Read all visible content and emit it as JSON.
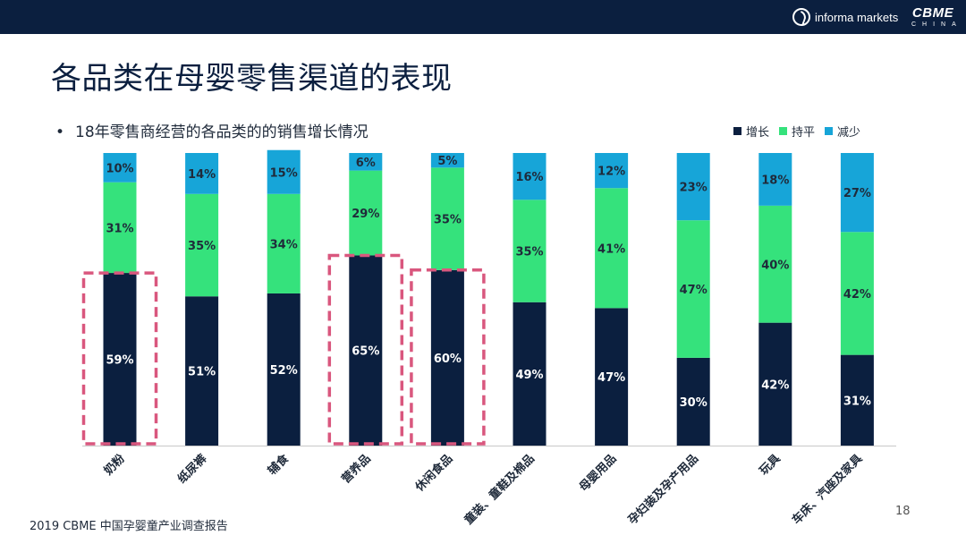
{
  "header": {
    "informa_text": "informa markets",
    "cbme_big": "CBME",
    "cbme_small": "CHINA"
  },
  "title": "各品类在母婴零售渠道的表现",
  "bullet": "18年零售商经营的各品类的的销售增长情况",
  "legend": [
    {
      "name": "增长",
      "color": "#0b1f3f"
    },
    {
      "name": "持平",
      "color": "#35e27c"
    },
    {
      "name": "减少",
      "color": "#17a5d8"
    }
  ],
  "chart_data": {
    "type": "bar",
    "stacked": true,
    "categories": [
      "奶粉",
      "纸尿裤",
      "辅食",
      "营养品",
      "休闲食品",
      "童装、童鞋及棉品",
      "母婴用品",
      "孕妇装及孕产用品",
      "玩具",
      "车床、汽座及家具"
    ],
    "series": [
      {
        "name": "增长",
        "values": [
          59,
          51,
          52,
          65,
          60,
          49,
          47,
          30,
          42,
          31
        ]
      },
      {
        "name": "持平",
        "values": [
          31,
          35,
          34,
          29,
          35,
          35,
          41,
          47,
          40,
          42
        ]
      },
      {
        "name": "减少",
        "values": [
          10,
          14,
          15,
          6,
          5,
          16,
          12,
          23,
          18,
          27
        ]
      }
    ],
    "highlighted": [
      "奶粉",
      "营养品",
      "休闲食品"
    ],
    "legend_position": "top-right",
    "grid": false
  },
  "footer": "2019 CBME 中国孕婴童产业调查报告",
  "page_number": "18"
}
